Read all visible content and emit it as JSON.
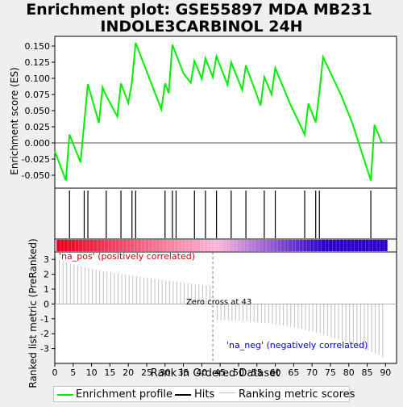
{
  "title_line1": "Enrichment plot: GSE55897 MDA MB231",
  "title_line2": "INDOLE3CARBINOL 24H",
  "colors": {
    "profile": "#00ee00",
    "hits": "#000000",
    "metric": "#c0c0c0",
    "pos_label": "#cc0000",
    "neg_label": "#0000cc",
    "bar_pos": "#e8001c",
    "bar_mid": "#ffb6d9",
    "bar_neg": "#2a00cc"
  },
  "legend": {
    "profile": "Enrichment profile",
    "hits": "Hits",
    "metric": "Ranking metric scores"
  },
  "chart_data": [
    {
      "type": "line",
      "ylabel": "Enrichment score (ES)",
      "xlim": [
        0,
        93
      ],
      "ylim": [
        -0.07,
        0.165
      ],
      "yticks": [
        -0.05,
        -0.025,
        0.0,
        0.025,
        0.05,
        0.075,
        0.1,
        0.125,
        0.15
      ],
      "ytick_labels": [
        "-0.050",
        "-0.025",
        "0.000",
        "0.025",
        "0.050",
        "0.075",
        "0.100",
        "0.125",
        "0.150"
      ],
      "series": [
        {
          "x": [
            0,
            3,
            4,
            7,
            9,
            12,
            13,
            14,
            17,
            18,
            20,
            21,
            22,
            29,
            30,
            31,
            32,
            35,
            37,
            38,
            40,
            41,
            43,
            44,
            47,
            48,
            51,
            52,
            56,
            57,
            59,
            60,
            64,
            68,
            69,
            71,
            72,
            73,
            78,
            81,
            86,
            87,
            89
          ],
          "y": [
            -0.013,
            -0.058,
            0.013,
            -0.03,
            0.091,
            0.031,
            0.086,
            0.073,
            0.041,
            0.092,
            0.062,
            0.094,
            0.155,
            0.052,
            0.092,
            0.077,
            0.152,
            0.108,
            0.093,
            0.127,
            0.099,
            0.131,
            0.102,
            0.134,
            0.09,
            0.125,
            0.082,
            0.12,
            0.058,
            0.102,
            0.075,
            0.116,
            0.061,
            0.013,
            0.061,
            0.032,
            0.078,
            0.133,
            0.073,
            0.03,
            -0.058,
            0.028,
            0.0
          ]
        }
      ]
    },
    {
      "type": "hits",
      "xlim": [
        0,
        93
      ],
      "hit_ranks": [
        4,
        8,
        9,
        14,
        18,
        21,
        22,
        30,
        32,
        33,
        38,
        41,
        44,
        48,
        52,
        57,
        60,
        68,
        71,
        72,
        86
      ]
    },
    {
      "type": "bar",
      "xlabel": "Rank in Ordered Dataset",
      "ylabel": "Ranked list metric (PreRanked)",
      "xlim": [
        0,
        93
      ],
      "ylim": [
        -4,
        3.5
      ],
      "xticks": [
        0,
        5,
        10,
        15,
        20,
        25,
        30,
        35,
        40,
        45,
        50,
        55,
        60,
        65,
        70,
        75,
        80,
        85,
        90
      ],
      "yticks": [
        -3,
        -2,
        -1,
        0,
        1,
        2,
        3
      ],
      "start_value": 3.2,
      "zero_cross_rank": 43,
      "end_value": -3.7,
      "n_ranks": 90,
      "pos_label": "'na_pos' (positively correlated)",
      "neg_label": "'na_neg' (negatively correlated)",
      "zero_cross_label": "Zero cross at 43"
    }
  ]
}
